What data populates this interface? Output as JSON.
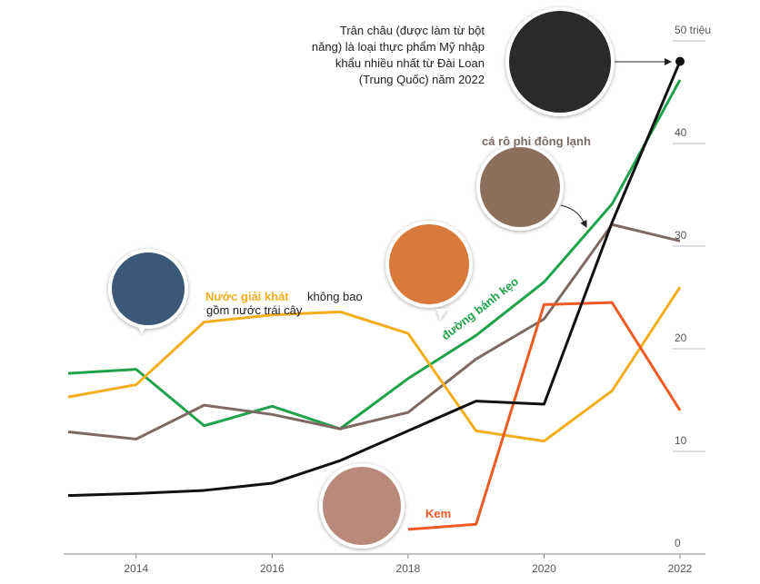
{
  "chart_data": {
    "type": "line",
    "xlim": [
      2013,
      2022
    ],
    "xticks": [
      2014,
      2016,
      2018,
      2020,
      2022
    ],
    "ylim": [
      0,
      50
    ],
    "yticks": [
      0,
      10,
      20,
      30,
      40,
      {
        "value": 50,
        "label": "50 triệu"
      }
    ],
    "x": [
      2013,
      2014,
      2015,
      2016,
      2017,
      2018,
      2019,
      2020,
      2021,
      2022
    ],
    "series": [
      {
        "color": "#111111",
        "values": [
          5.7,
          5.9,
          6.2,
          6.9,
          9.1,
          12.0,
          14.9,
          14.6,
          32.3,
          48.0
        ]
      },
      {
        "name": "đường bánh kẹo",
        "color": "#1fa34a",
        "values": [
          17.6,
          18.0,
          12.5,
          14.4,
          12.2,
          17.1,
          21.3,
          26.5,
          34.1,
          46.2
        ]
      },
      {
        "name": "cá rô phi đông lạnh",
        "color": "#7d6a63",
        "values": [
          11.9,
          11.2,
          14.5,
          13.6,
          12.2,
          13.8,
          19.0,
          22.9,
          32.1,
          30.5
        ]
      },
      {
        "name": "Nước giải khát",
        "color": "#f4ad1c",
        "values": [
          15.3,
          16.5,
          22.6,
          23.3,
          23.6,
          21.5,
          12.0,
          11.0,
          15.9,
          26.0
        ]
      },
      {
        "name": "Kem",
        "color": "#ee5a24",
        "values": [
          null,
          null,
          null,
          null,
          null,
          2.4,
          2.9,
          24.3,
          24.5,
          14.0
        ]
      }
    ],
    "annotations": [
      "Trân châu (được làm từ bột",
      "năng) là loại thực phẩm Mỹ nhập",
      "khẩu nhiều nhất từ Đài Loan",
      "(Trung Quốc) năm 2022",
      "không bao",
      "gồm nước trái cây"
    ]
  }
}
